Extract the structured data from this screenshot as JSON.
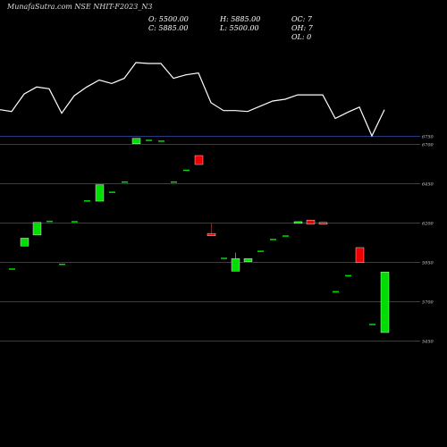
{
  "header": {
    "title_text": "MunafaSutra.com NSE NHIT-F2023_N3"
  },
  "ohlc": {
    "open": "O: 5500.00",
    "high": "H: 5885.00",
    "close": "C: 5885.00",
    "low": "L: 5500.00",
    "oc": "OC: 7",
    "oh": "OH: 7",
    "ol": "OL: 0"
  },
  "colors": {
    "background": "#000000",
    "up": "#00dd00",
    "down": "#ee0000",
    "line": "#ffffff",
    "grid": "#2a3a80"
  },
  "chart_data": {
    "type": "candlestick",
    "ylim": [
      5600,
      6850
    ],
    "y_ticks": [
      {
        "value": 6750,
        "label": "6750"
      },
      {
        "value": 6700,
        "label": "6700"
      },
      {
        "value": 6450,
        "label": "6450"
      },
      {
        "value": 6200,
        "label": "6200"
      },
      {
        "value": 5950,
        "label": "5950"
      },
      {
        "value": 5700,
        "label": "5700"
      },
      {
        "value": 5450,
        "label": "5450"
      }
    ],
    "candles": [
      {
        "x": 13,
        "open": 5902,
        "close": 5902,
        "high": 5902,
        "low": 5902
      },
      {
        "x": 27,
        "open": 6050,
        "close": 6100,
        "high": 6100,
        "low": 6050
      },
      {
        "x": 41,
        "open": 6120,
        "close": 6200,
        "high": 6200,
        "low": 6120
      },
      {
        "x": 55,
        "open": 6205,
        "close": 6205,
        "high": 6205,
        "low": 6205
      },
      {
        "x": 69,
        "open": 5932,
        "close": 5932,
        "high": 5932,
        "low": 5932
      },
      {
        "x": 83,
        "open": 6203,
        "close": 6203,
        "high": 6203,
        "low": 6203
      },
      {
        "x": 97,
        "open": 6335,
        "close": 6335,
        "high": 6335,
        "low": 6335
      },
      {
        "x": 111,
        "open": 6335,
        "close": 6440,
        "high": 6440,
        "low": 6335
      },
      {
        "x": 125,
        "open": 6390,
        "close": 6390,
        "high": 6390,
        "low": 6390
      },
      {
        "x": 139,
        "open": 6455,
        "close": 6455,
        "high": 6455,
        "low": 6455
      },
      {
        "x": 152,
        "open": 6700,
        "close": 6735,
        "high": 6735,
        "low": 6700
      },
      {
        "x": 166,
        "open": 6720,
        "close": 6720,
        "high": 6720,
        "low": 6720
      },
      {
        "x": 180,
        "open": 6715,
        "close": 6715,
        "high": 6715,
        "low": 6715
      },
      {
        "x": 194,
        "open": 6455,
        "close": 6455,
        "high": 6455,
        "low": 6455
      },
      {
        "x": 208,
        "open": 6530,
        "close": 6530,
        "high": 6530,
        "low": 6530
      },
      {
        "x": 222,
        "open": 6625,
        "close": 6568,
        "high": 6625,
        "low": 6568
      },
      {
        "x": 236,
        "open": 6130,
        "close": 6115,
        "high": 6195,
        "low": 6115
      },
      {
        "x": 250,
        "open": 5970,
        "close": 5970,
        "high": 5970,
        "low": 5970
      },
      {
        "x": 263,
        "open": 5890,
        "close": 5970,
        "high": 6008,
        "low": 5890
      },
      {
        "x": 277,
        "open": 5950,
        "close": 5970,
        "high": 5970,
        "low": 5950
      },
      {
        "x": 291,
        "open": 6015,
        "close": 6015,
        "high": 6015,
        "low": 6015
      },
      {
        "x": 305,
        "open": 6090,
        "close": 6090,
        "high": 6090,
        "low": 6090
      },
      {
        "x": 319,
        "open": 6112,
        "close": 6112,
        "high": 6112,
        "low": 6112
      },
      {
        "x": 333,
        "open": 6195,
        "close": 6205,
        "high": 6205,
        "low": 6195
      },
      {
        "x": 347,
        "open": 6215,
        "close": 6190,
        "high": 6215,
        "low": 6190
      },
      {
        "x": 361,
        "open": 6200,
        "close": 6190,
        "high": 6200,
        "low": 6190
      },
      {
        "x": 375,
        "open": 5758,
        "close": 5758,
        "high": 5758,
        "low": 5758
      },
      {
        "x": 389,
        "open": 5860,
        "close": 5860,
        "high": 5860,
        "low": 5860
      },
      {
        "x": 402,
        "open": 6040,
        "close": 5945,
        "high": 6040,
        "low": 5945
      },
      {
        "x": 416,
        "open": 5550,
        "close": 5550,
        "high": 5550,
        "low": 5550
      },
      {
        "x": 430,
        "open": 5500,
        "close": 5885,
        "high": 5885,
        "low": 5500
      }
    ],
    "overlay_line": [
      0.75,
      0.74,
      0.84,
      0.88,
      0.87,
      0.73,
      0.83,
      0.88,
      0.92,
      0.9,
      0.93,
      1.02,
      1.015,
      1.015,
      0.93,
      0.95,
      0.96,
      0.79,
      0.745,
      0.745,
      0.74,
      0.77,
      0.8,
      0.81,
      0.835,
      0.835,
      0.835,
      0.7,
      0.735,
      0.765,
      0.6,
      0.75
    ],
    "overlay_x": [
      0,
      13,
      27,
      41,
      55,
      69,
      83,
      97,
      111,
      125,
      139,
      152,
      166,
      180,
      194,
      208,
      222,
      236,
      250,
      263,
      277,
      291,
      305,
      319,
      333,
      347,
      361,
      375,
      389,
      402,
      416,
      430
    ]
  }
}
